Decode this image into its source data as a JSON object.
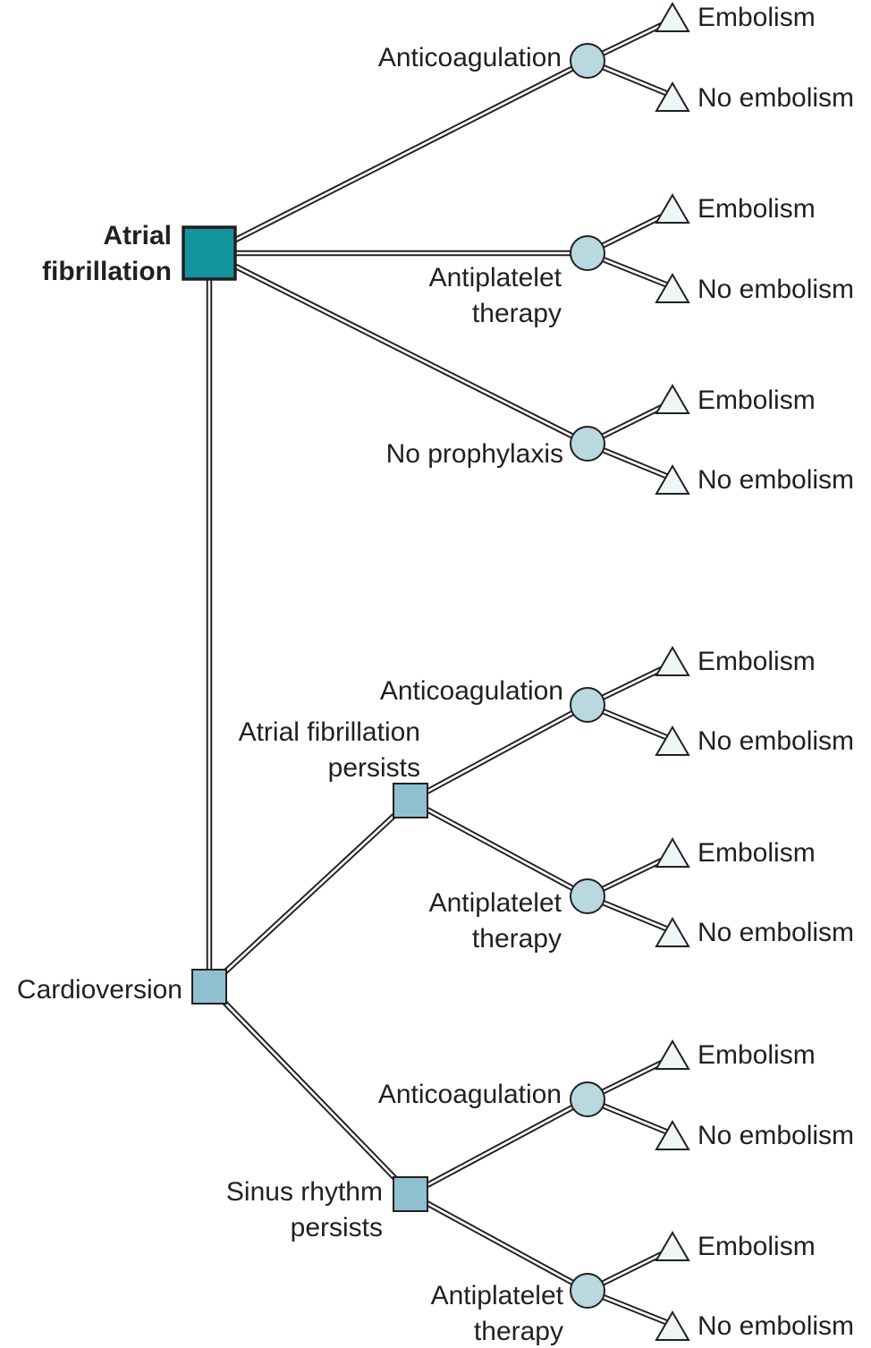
{
  "root": {
    "line1": "Atrial",
    "line2": "fibrillation"
  },
  "branches": {
    "anticoagulation": "Anticoagulation",
    "antiplatelet_line1": "Antiplatelet",
    "antiplatelet_line2": "therapy",
    "no_prophylaxis": "No prophylaxis",
    "cardioversion": "Cardioversion",
    "af_persists_line1": "Atrial fibrillation",
    "af_persists_line2": "persists",
    "sinus_line1": "Sinus rhythm",
    "sinus_line2": "persists"
  },
  "outcomes": {
    "embolism": "Embolism",
    "no_embolism": "No embolism"
  },
  "colors": {
    "root_node": "#13949f",
    "decision_node": "#8fc0d0",
    "chance_node": "#b9d8e0",
    "terminal_node": "#eef6f7",
    "line": "#231f20"
  }
}
